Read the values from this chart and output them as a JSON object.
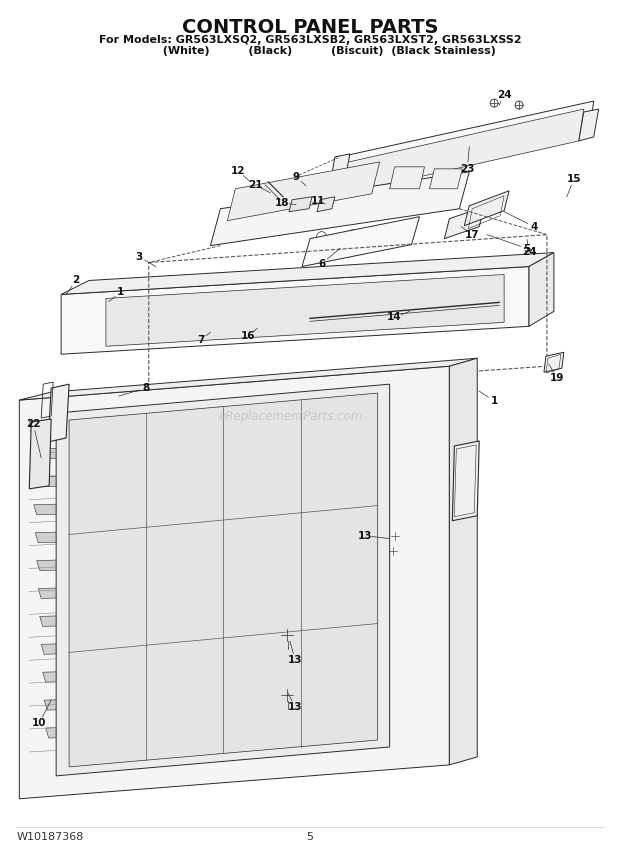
{
  "title": "CONTROL PANEL PARTS",
  "subtitle_line1": "For Models: GR563LXSQ2, GR563LXSB2, GR563LXST2, GR563LXSS2",
  "subtitle_line2": "          (White)              (Black)              (Biscuit)  (Black Stainless)",
  "footer_left": "W10187368",
  "footer_center": "5",
  "bg_color": "#ffffff",
  "title_fontsize": 14,
  "subtitle_fontsize": 8,
  "footer_fontsize": 8,
  "watermark": "eReplacementParts.com",
  "watermark_color": "#bbbbbb"
}
